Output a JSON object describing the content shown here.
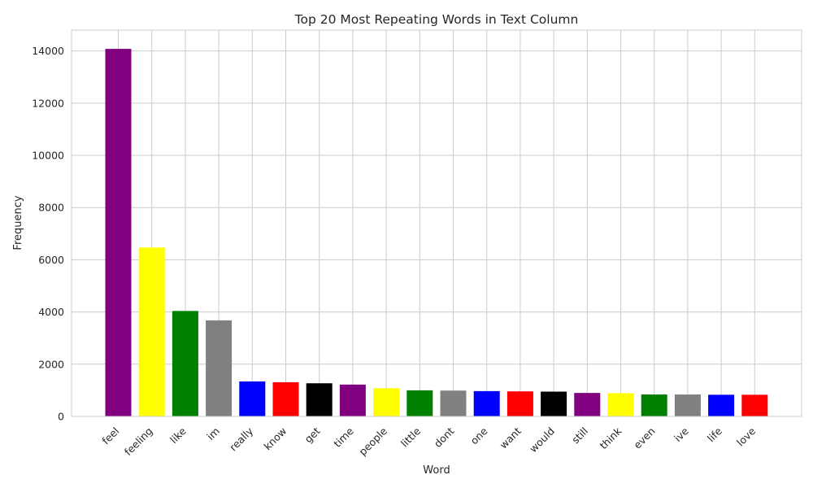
{
  "chart_data": {
    "type": "bar",
    "title": "Top 20 Most Repeating Words in Text Column",
    "xlabel": "Word",
    "ylabel": "Frequency",
    "ylim": [
      0,
      14800
    ],
    "yticks": [
      0,
      2000,
      4000,
      6000,
      8000,
      10000,
      12000,
      14000
    ],
    "grid": true,
    "legend": "none",
    "categories": [
      "feel",
      "feeling",
      "like",
      "im",
      "really",
      "know",
      "get",
      "time",
      "people",
      "little",
      "dont",
      "one",
      "want",
      "would",
      "still",
      "think",
      "even",
      "ive",
      "life",
      "love"
    ],
    "values": [
      14080,
      6470,
      4040,
      3680,
      1340,
      1310,
      1270,
      1220,
      1080,
      1000,
      990,
      970,
      960,
      950,
      900,
      890,
      840,
      840,
      830,
      830
    ],
    "colors": [
      "#800080",
      "#ffff00",
      "#008000",
      "#808080",
      "#0000ff",
      "#ff0000",
      "#000000",
      "#800080",
      "#ffff00",
      "#008000",
      "#808080",
      "#0000ff",
      "#ff0000",
      "#000000",
      "#800080",
      "#ffff00",
      "#008000",
      "#808080",
      "#0000ff",
      "#ff0000"
    ]
  }
}
